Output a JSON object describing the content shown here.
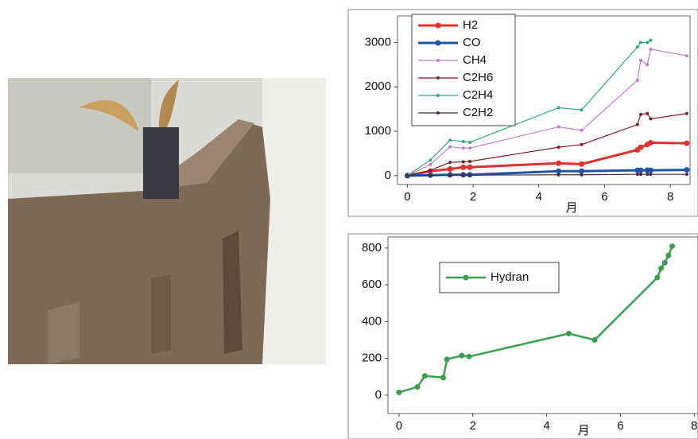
{
  "chart_data": [
    {
      "type": "line",
      "xlabel": "月",
      "x": [
        0,
        0.7,
        1.3,
        1.7,
        1.9,
        4.6,
        5.3,
        7.0,
        7.1,
        7.3,
        7.4,
        8.5
      ],
      "series": [
        {
          "name": "H2",
          "color": "#e03030",
          "line_width": 3,
          "values": [
            0,
            100,
            150,
            190,
            190,
            280,
            260,
            580,
            640,
            700,
            740,
            730
          ]
        },
        {
          "name": "CO",
          "color": "#2255aa",
          "line_width": 3,
          "values": [
            0,
            10,
            20,
            20,
            20,
            100,
            100,
            120,
            120,
            120,
            120,
            130
          ]
        },
        {
          "name": "CH4",
          "color": "#c080c8",
          "line_width": 1.2,
          "values": [
            0,
            250,
            650,
            620,
            620,
            1100,
            1020,
            2150,
            2600,
            2500,
            2850,
            2700
          ]
        },
        {
          "name": "C2H6",
          "color": "#7a1f2a",
          "line_width": 1.2,
          "values": [
            0,
            120,
            300,
            310,
            320,
            640,
            700,
            1150,
            1380,
            1400,
            1280,
            1400
          ]
        },
        {
          "name": "C2H4",
          "color": "#2faa80",
          "line_width": 1.2,
          "values": [
            0,
            350,
            800,
            770,
            750,
            1530,
            1480,
            2900,
            3000,
            3000,
            3050,
            null
          ]
        },
        {
          "name": "C2H2",
          "color": "#4a2a50",
          "line_width": 1.2,
          "values": [
            0,
            5,
            10,
            10,
            10,
            20,
            20,
            30,
            30,
            30,
            30,
            30
          ]
        }
      ],
      "xlim": [
        -0.3,
        8.6
      ],
      "ylim": [
        -200,
        3600
      ],
      "xticks": [
        0,
        2,
        4,
        6,
        8
      ],
      "yticks": [
        0,
        1000,
        2000,
        3000
      ]
    },
    {
      "type": "line",
      "xlabel": "月",
      "x": [
        0,
        0.5,
        0.7,
        1.2,
        1.3,
        1.7,
        1.9,
        4.6,
        5.3,
        7.0,
        7.1,
        7.2,
        7.3,
        7.4
      ],
      "series": [
        {
          "name": "Hydran",
          "color": "#3aa050",
          "line_width": 2.5,
          "values": [
            15,
            45,
            105,
            95,
            195,
            215,
            210,
            335,
            300,
            640,
            690,
            720,
            760,
            810
          ]
        }
      ],
      "xlim": [
        -0.3,
        8.1
      ],
      "ylim": [
        -100,
        860
      ],
      "xticks": [
        0,
        2,
        4,
        6,
        8
      ],
      "yticks": [
        0,
        200,
        400,
        600,
        800
      ]
    }
  ]
}
